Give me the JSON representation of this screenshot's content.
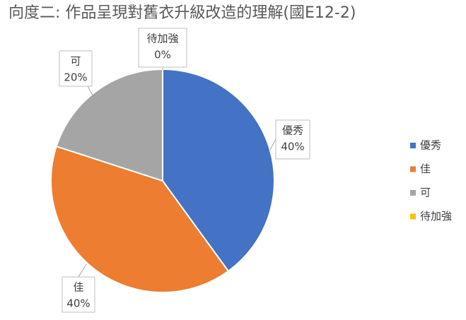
{
  "chart_data": {
    "type": "pie",
    "title": "向度二: 作品呈現對舊衣升級改造的理解(國E12-2)",
    "categories": [
      "優秀",
      "佳",
      "可",
      "待加強"
    ],
    "values": [
      40,
      40,
      20,
      0
    ],
    "value_labels": [
      "40%",
      "40%",
      "20%",
      "0%"
    ],
    "colors": [
      "#4472c4",
      "#ed7d31",
      "#a5a5a5",
      "#ffc000"
    ],
    "legend": "right"
  }
}
